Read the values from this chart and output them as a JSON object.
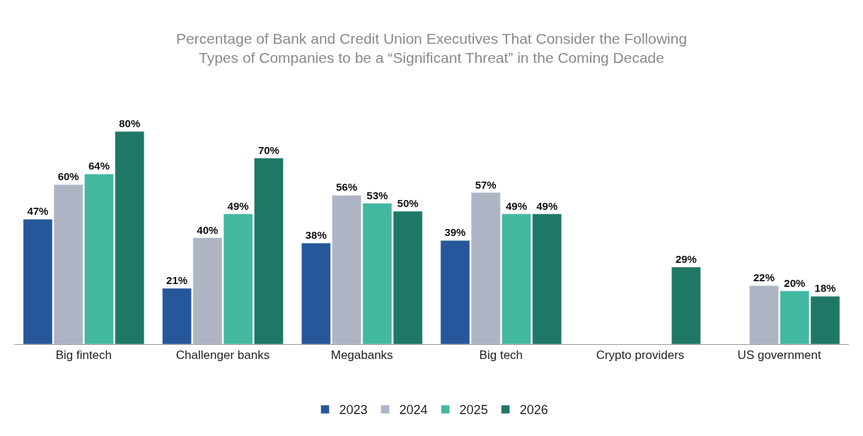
{
  "chart_data": {
    "type": "bar",
    "title": "Percentage of Bank and Credit Union Executives That Consider the Following Types of Companies to be a “Significant Threat” in the Coming Decade",
    "categories": [
      "Big fintech",
      "Challenger banks",
      "Megabanks",
      "Big tech",
      "Crypto providers",
      "US government"
    ],
    "series": [
      {
        "name": "2023",
        "color": "#26579a",
        "values": [
          47,
          21,
          38,
          39,
          null,
          null
        ],
        "value_labels": [
          "47%",
          "21%",
          "38%",
          "39%",
          null,
          null
        ]
      },
      {
        "name": "2024",
        "color": "#aeb4c4",
        "values": [
          60,
          40,
          56,
          57,
          null,
          22
        ],
        "value_labels": [
          "60%",
          "40%",
          "56%",
          "57%",
          null,
          "22%"
        ]
      },
      {
        "name": "2025",
        "color": "#43b8a1",
        "values": [
          64,
          49,
          53,
          49,
          null,
          20
        ],
        "value_labels": [
          "64%",
          "49%",
          "53%",
          "49%",
          null,
          "20%"
        ]
      },
      {
        "name": "2026",
        "color": "#1f7766",
        "values": [
          80,
          70,
          50,
          49,
          29,
          18
        ],
        "value_labels": [
          "80%",
          "70%",
          "50%",
          "49%",
          "29%",
          "18%"
        ]
      }
    ],
    "legend": "bottom"
  }
}
